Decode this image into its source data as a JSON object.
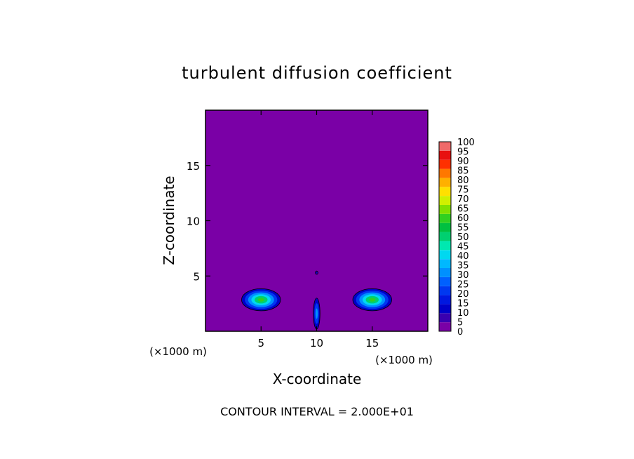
{
  "chart_data": {
    "type": "heatmap",
    "title": "turbulent diffusion coefficient",
    "xlabel": "X-coordinate",
    "ylabel": "Z-coordinate",
    "x_unit": "(×1000 m)",
    "y_unit": "(×1000 m)",
    "xlim": [
      0,
      20
    ],
    "ylim": [
      0,
      20
    ],
    "x_ticks": [
      5,
      10,
      15
    ],
    "y_ticks": [
      5,
      10,
      15
    ],
    "background_value": 0,
    "colorbar": {
      "min": 0,
      "max": 100,
      "labels": [
        "0",
        "5",
        "10",
        "15",
        "20",
        "25",
        "30",
        "35",
        "40",
        "45",
        "50",
        "55",
        "60",
        "65",
        "70",
        "75",
        "80",
        "85",
        "90",
        "95",
        "100"
      ],
      "colors": [
        "#7a00a6",
        "#3a00b0",
        "#0000c8",
        "#0018e0",
        "#0038f0",
        "#0060ff",
        "#0090ff",
        "#00b8ff",
        "#00d8f0",
        "#00e8b0",
        "#00d070",
        "#00c040",
        "#30d020",
        "#80e000",
        "#d0f000",
        "#ffe000",
        "#ffb000",
        "#ff7800",
        "#ff3000",
        "#e81010",
        "#f06a6a"
      ]
    },
    "regions": [
      {
        "name": "left-rotor",
        "x": 5.0,
        "z": 2.85,
        "rx": 1.75,
        "rz": 1.0,
        "peak": 60
      },
      {
        "name": "right-rotor",
        "x": 15.0,
        "z": 2.85,
        "rx": 1.75,
        "rz": 1.0,
        "peak": 60
      },
      {
        "name": "central-plume",
        "x": 10.0,
        "z": 1.6,
        "rx": 0.3,
        "rz": 1.4,
        "peak": 30
      },
      {
        "name": "small-cell",
        "x": 10.0,
        "z": 5.3,
        "rx": 0.12,
        "rz": 0.15,
        "peak": 10
      }
    ],
    "annotation": "CONTOUR INTERVAL = 2.000E+01"
  }
}
